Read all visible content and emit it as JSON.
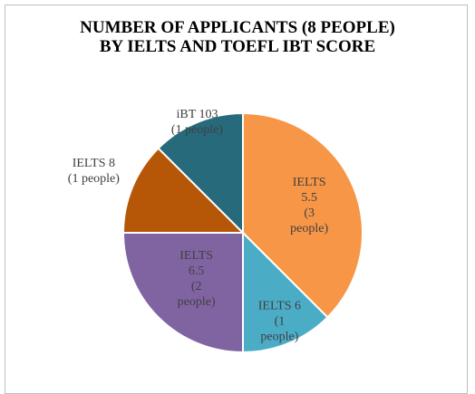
{
  "chart_data": {
    "type": "pie",
    "title": "NUMBER OF APPLICANTS (8 PEOPLE) BY IELTS AND TOEFL IBT SCORE",
    "categories": [
      "IELTS 5.5",
      "IELTS 6",
      "IELTS 6.5",
      "IELTS 8",
      "iBT 103"
    ],
    "values": [
      3,
      1,
      2,
      1,
      1
    ],
    "value_labels": [
      "(3 people)",
      "(1 people)",
      "(2 people)",
      "(1 people)",
      "(1 people)"
    ],
    "colors": [
      "#F79646",
      "#4BACC6",
      "#8064A2",
      "#B65708",
      "#276A7C"
    ]
  }
}
